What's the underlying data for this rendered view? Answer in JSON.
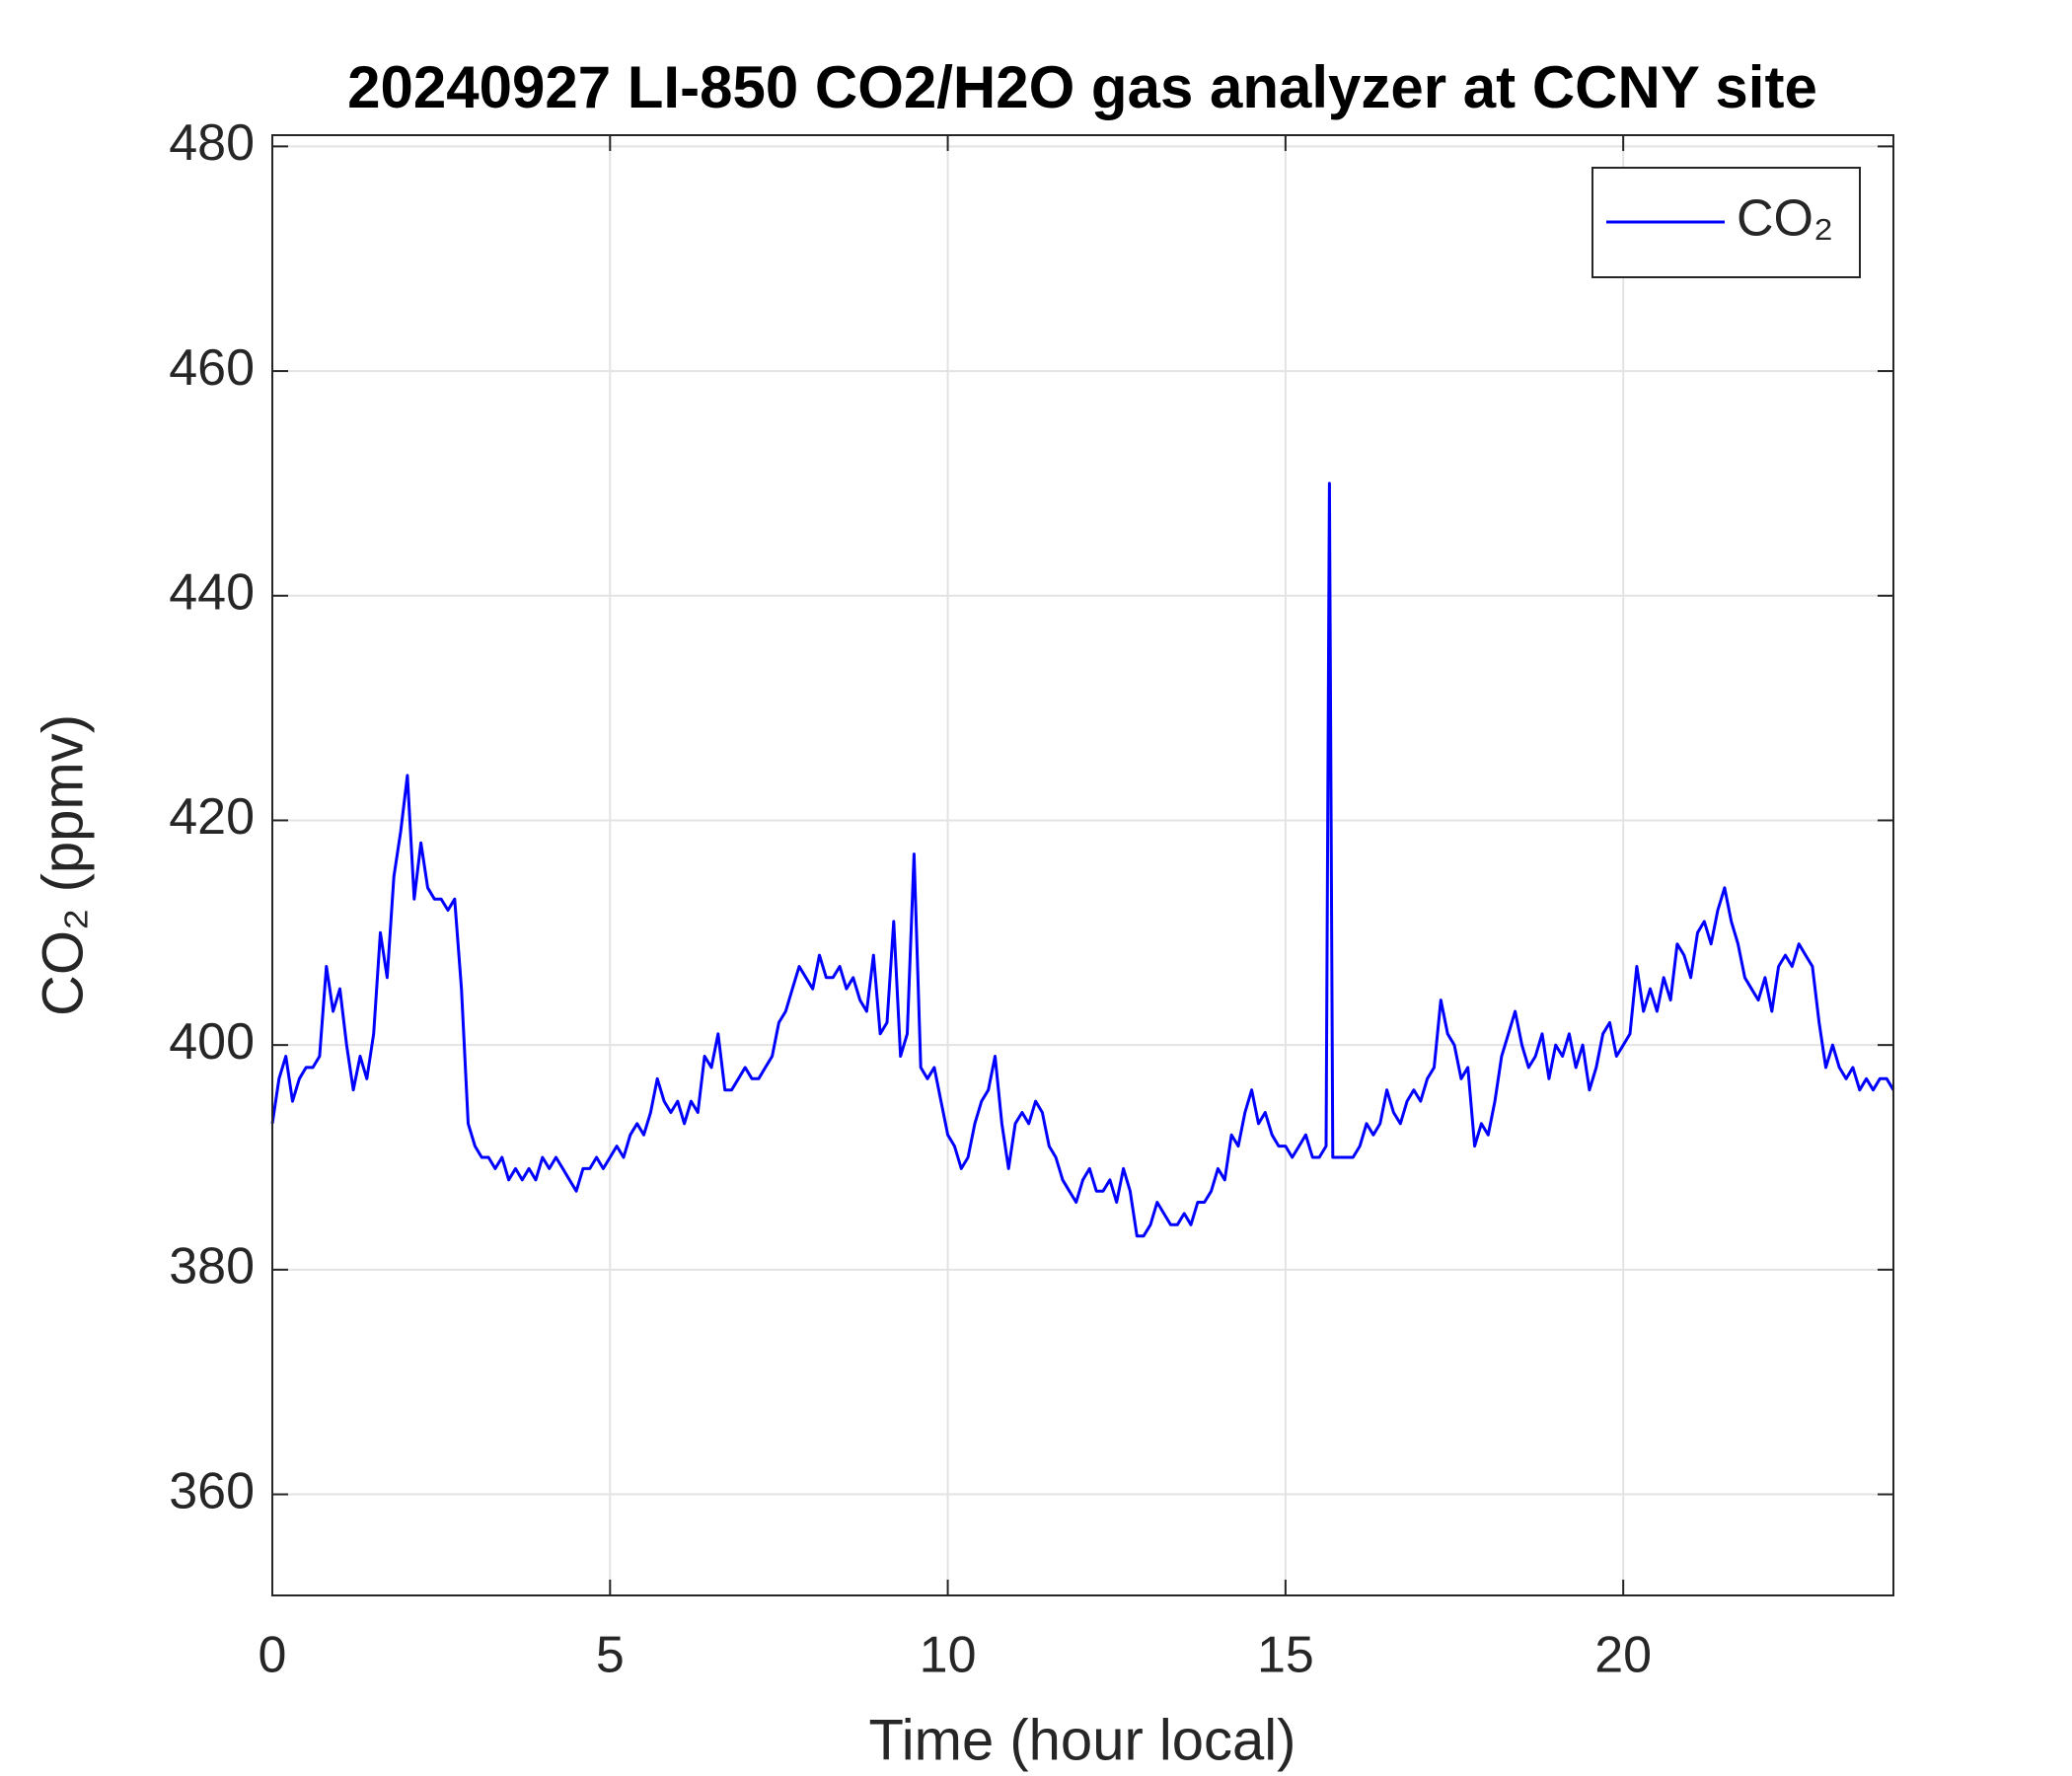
{
  "chart_data": {
    "type": "line",
    "title": "20240927 LI-850 CO2/H2O gas analyzer at CCNY site",
    "xlabel": "Time (hour local)",
    "ylabel": "CO₂ (ppmv)",
    "x": [
      0.0,
      0.1,
      0.2,
      0.3,
      0.4,
      0.5,
      0.6,
      0.7,
      0.8,
      0.9,
      1.0,
      1.1,
      1.2,
      1.3,
      1.4,
      1.5,
      1.6,
      1.7,
      1.8,
      1.9,
      2.0,
      2.1,
      2.2,
      2.3,
      2.4,
      2.5,
      2.6,
      2.7,
      2.8,
      2.9,
      3.0,
      3.1,
      3.2,
      3.3,
      3.4,
      3.5,
      3.6,
      3.7,
      3.8,
      3.9,
      4.0,
      4.1,
      4.2,
      4.3,
      4.4,
      4.5,
      4.6,
      4.7,
      4.8,
      4.9,
      5.0,
      5.1,
      5.2,
      5.3,
      5.4,
      5.5,
      5.6,
      5.7,
      5.8,
      5.9,
      6.0,
      6.1,
      6.2,
      6.3,
      6.4,
      6.5,
      6.6,
      6.7,
      6.8,
      6.9,
      7.0,
      7.1,
      7.2,
      7.3,
      7.4,
      7.5,
      7.6,
      7.7,
      7.8,
      7.9,
      8.0,
      8.1,
      8.2,
      8.3,
      8.4,
      8.5,
      8.6,
      8.7,
      8.8,
      8.9,
      9.0,
      9.1,
      9.2,
      9.3,
      9.4,
      9.5,
      9.6,
      9.7,
      9.8,
      9.9,
      10.0,
      10.1,
      10.2,
      10.3,
      10.4,
      10.5,
      10.6,
      10.7,
      10.8,
      10.9,
      11.0,
      11.1,
      11.2,
      11.3,
      11.4,
      11.5,
      11.6,
      11.7,
      11.8,
      11.9,
      12.0,
      12.1,
      12.2,
      12.3,
      12.4,
      12.5,
      12.6,
      12.7,
      12.8,
      12.9,
      13.0,
      13.1,
      13.2,
      13.3,
      13.4,
      13.5,
      13.6,
      13.7,
      13.8,
      13.9,
      14.0,
      14.1,
      14.2,
      14.3,
      14.4,
      14.5,
      14.6,
      14.7,
      14.8,
      14.9,
      15.0,
      15.1,
      15.2,
      15.3,
      15.4,
      15.5,
      15.6,
      15.65,
      15.7,
      15.8,
      15.9,
      16.0,
      16.1,
      16.2,
      16.3,
      16.4,
      16.5,
      16.6,
      16.7,
      16.8,
      16.9,
      17.0,
      17.1,
      17.2,
      17.3,
      17.4,
      17.5,
      17.6,
      17.7,
      17.8,
      17.9,
      18.0,
      18.1,
      18.2,
      18.3,
      18.4,
      18.5,
      18.6,
      18.7,
      18.8,
      18.9,
      19.0,
      19.1,
      19.2,
      19.3,
      19.4,
      19.5,
      19.6,
      19.7,
      19.8,
      19.9,
      20.0,
      20.1,
      20.2,
      20.3,
      20.4,
      20.5,
      20.6,
      20.7,
      20.8,
      20.9,
      21.0,
      21.1,
      21.2,
      21.3,
      21.4,
      21.5,
      21.6,
      21.7,
      21.8,
      21.9,
      22.0,
      22.1,
      22.2,
      22.3,
      22.4,
      22.5,
      22.6,
      22.7,
      22.8,
      22.9,
      23.0,
      23.1,
      23.2,
      23.3,
      23.4,
      23.5,
      23.6,
      23.7,
      23.8,
      23.9,
      24.0
    ],
    "series": [
      {
        "name": "CO₂",
        "color": "#0000ff",
        "values": [
          393,
          397,
          399,
          395,
          397,
          398,
          398,
          399,
          407,
          403,
          405,
          400,
          396,
          399,
          397,
          401,
          410,
          406,
          415,
          419,
          424,
          413,
          418,
          414,
          413,
          413,
          412,
          413,
          405,
          393,
          391,
          390,
          390,
          389,
          390,
          388,
          389,
          388,
          389,
          388,
          390,
          389,
          390,
          389,
          388,
          387,
          389,
          389,
          390,
          389,
          390,
          391,
          390,
          392,
          393,
          392,
          394,
          397,
          395,
          394,
          395,
          393,
          395,
          394,
          399,
          398,
          401,
          396,
          396,
          397,
          398,
          397,
          397,
          398,
          399,
          402,
          403,
          405,
          407,
          406,
          405,
          408,
          406,
          406,
          407,
          405,
          406,
          404,
          403,
          408,
          401,
          402,
          411,
          399,
          401,
          417,
          398,
          397,
          398,
          395,
          392,
          391,
          389,
          390,
          393,
          395,
          396,
          399,
          393,
          389,
          393,
          394,
          393,
          395,
          394,
          391,
          390,
          388,
          387,
          386,
          388,
          389,
          387,
          387,
          388,
          386,
          389,
          387,
          383,
          383,
          384,
          386,
          385,
          384,
          384,
          385,
          384,
          386,
          386,
          387,
          389,
          388,
          392,
          391,
          394,
          396,
          393,
          394,
          392,
          391,
          391,
          390,
          391,
          392,
          390,
          390,
          391,
          450,
          390,
          390,
          390,
          390,
          391,
          393,
          392,
          393,
          396,
          394,
          393,
          395,
          396,
          395,
          397,
          398,
          404,
          401,
          400,
          397,
          398,
          391,
          393,
          392,
          395,
          399,
          401,
          403,
          400,
          398,
          399,
          401,
          397,
          400,
          399,
          401,
          398,
          400,
          396,
          398,
          401,
          402,
          399,
          400,
          401,
          407,
          403,
          405,
          403,
          406,
          404,
          409,
          408,
          406,
          410,
          411,
          409,
          412,
          414,
          411,
          409,
          406,
          405,
          404,
          406,
          403,
          407,
          408,
          407,
          409,
          408,
          407,
          402,
          398,
          400,
          398,
          397,
          398,
          396,
          397,
          396,
          397,
          397,
          396
        ]
      }
    ],
    "xlim": [
      0,
      24
    ],
    "xticks": [
      0,
      5,
      10,
      15,
      20
    ],
    "ylim": [
      351,
      481
    ],
    "yticks": [
      360,
      380,
      400,
      420,
      440,
      460,
      480
    ],
    "grid": true,
    "legend": "upper right"
  }
}
